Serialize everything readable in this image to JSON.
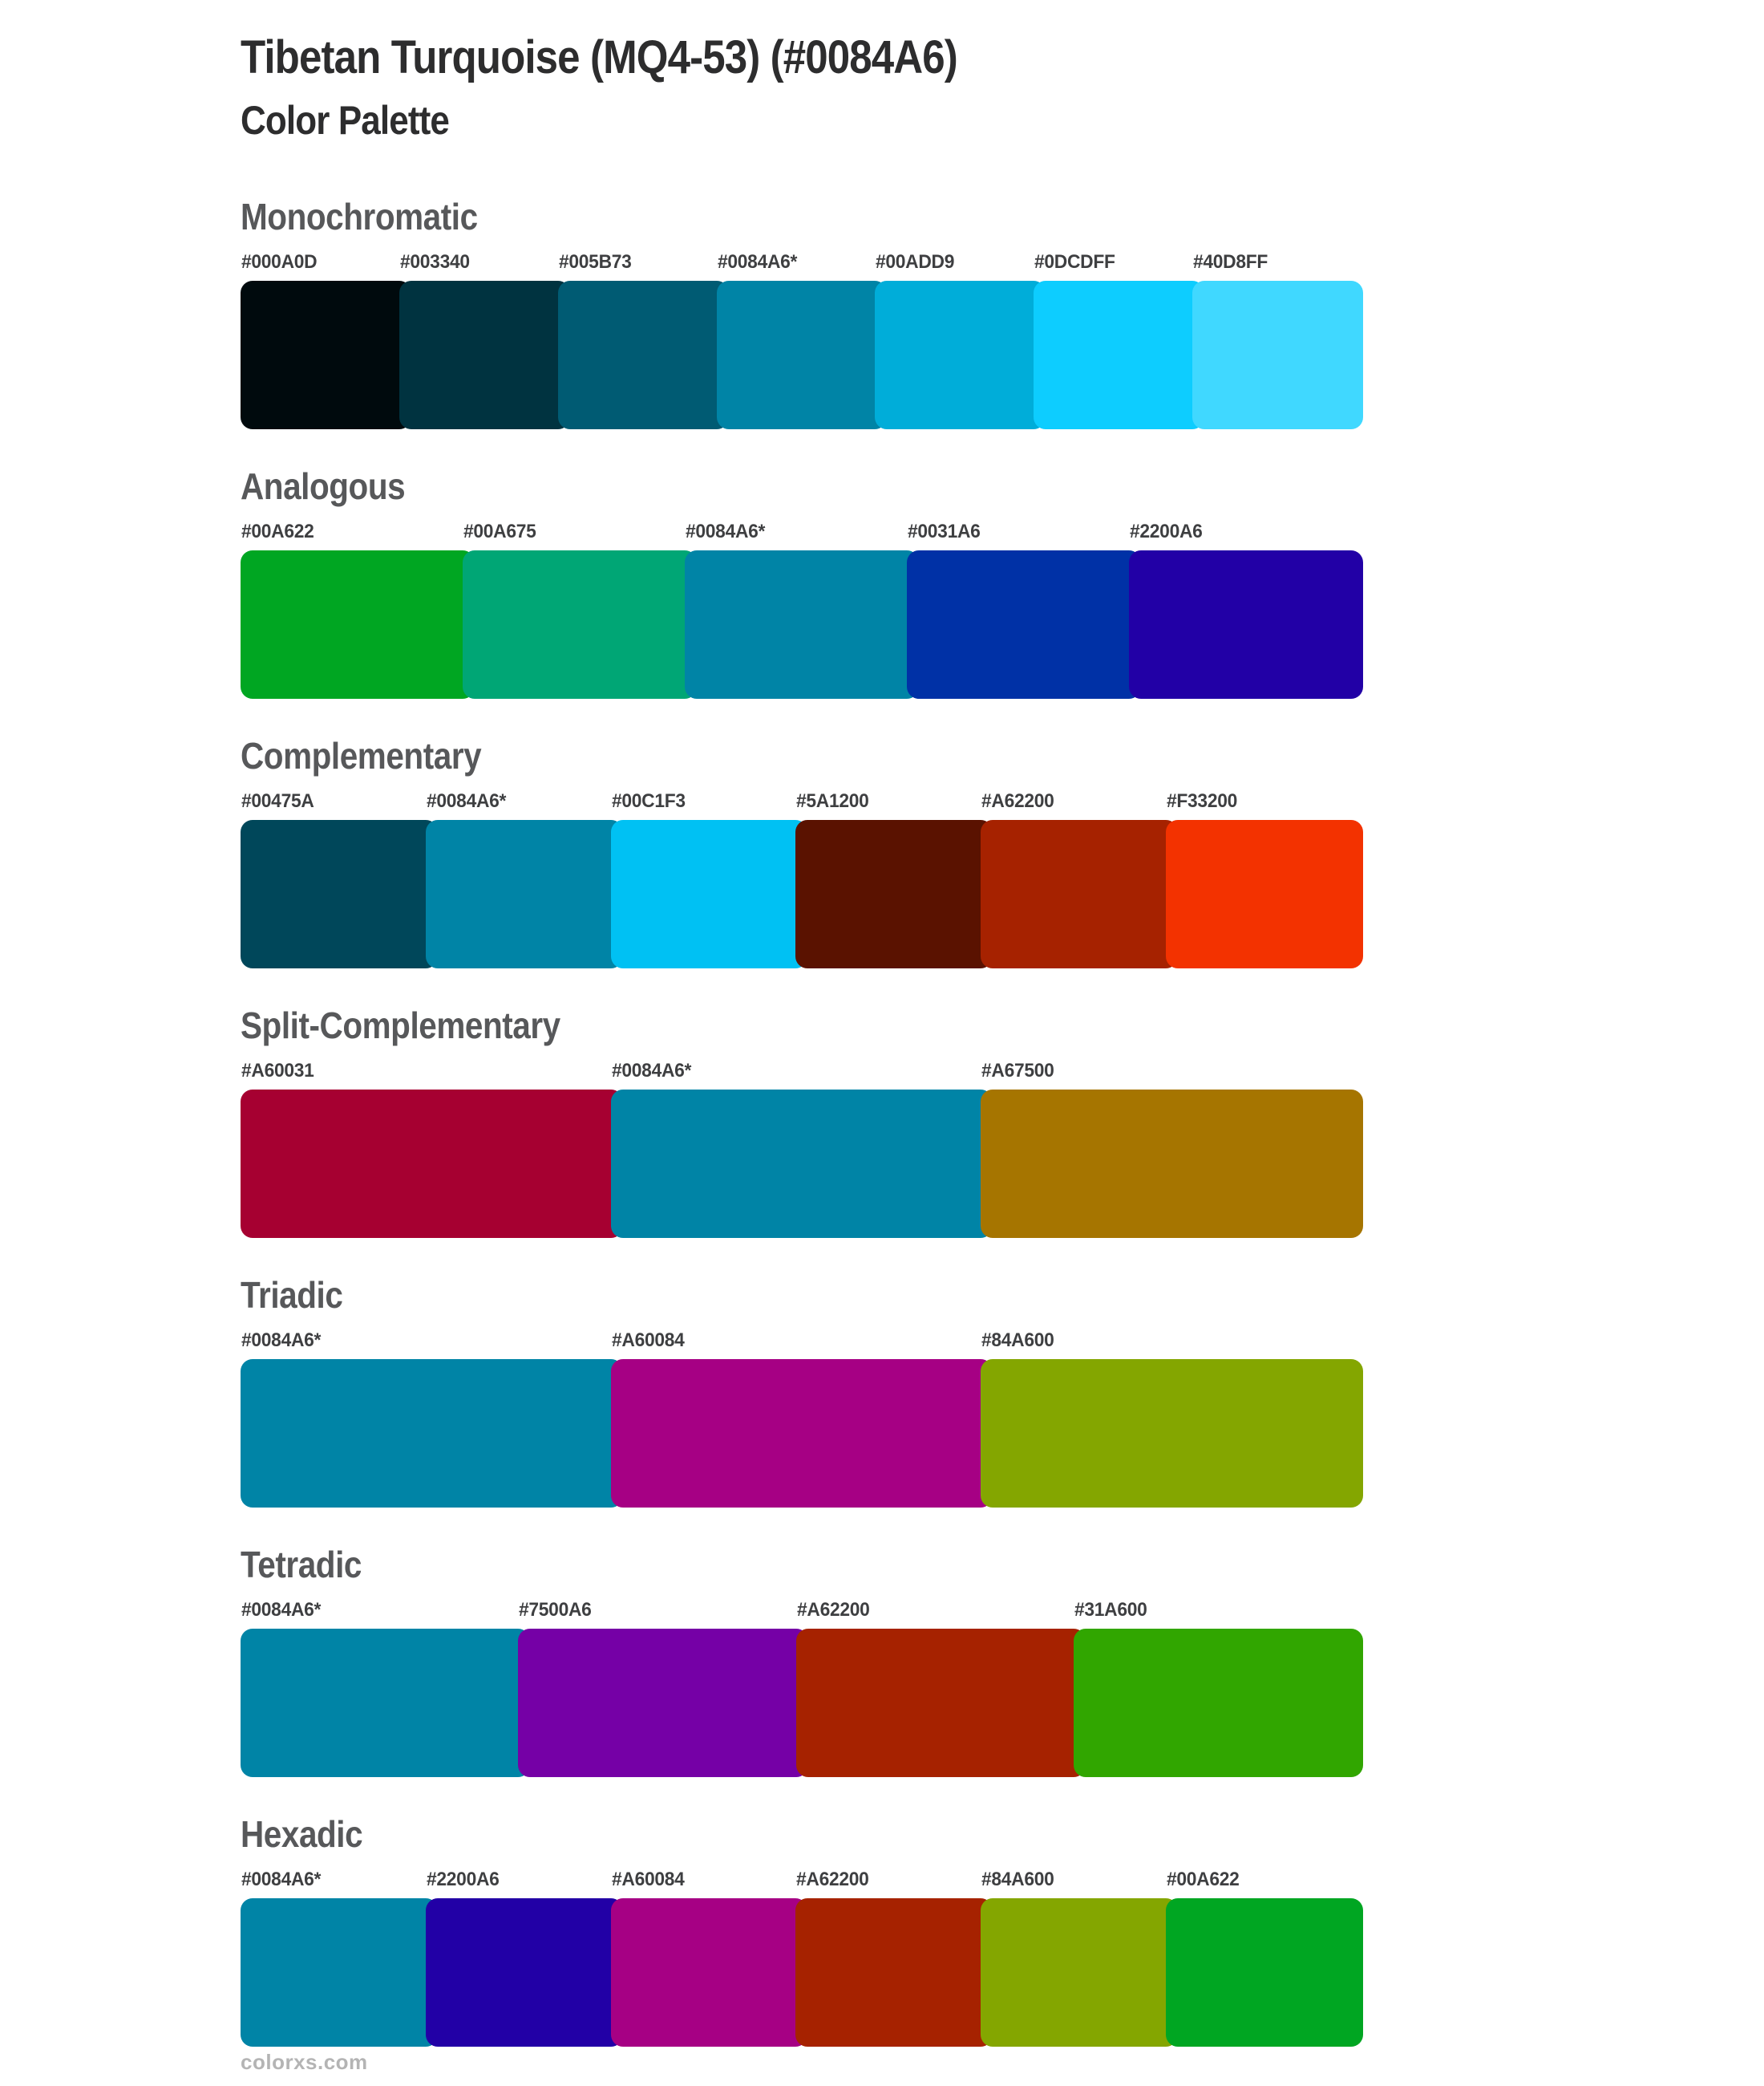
{
  "page": {
    "title": "Tibetan Turquoise (MQ4-53) (#0084A6)",
    "subtitle": "Color Palette",
    "footer": "colorxs.com"
  },
  "palette": {
    "base_color_hex": "#0084A6",
    "base_marker": "*",
    "sections": [
      {
        "name": "Monochromatic",
        "swatches": [
          {
            "label": "#000A0D",
            "color": "#000A0D",
            "is_base": false
          },
          {
            "label": "#003340",
            "color": "#003340",
            "is_base": false
          },
          {
            "label": "#005B73",
            "color": "#005B73",
            "is_base": false
          },
          {
            "label": "#0084A6*",
            "color": "#0084A6",
            "is_base": true
          },
          {
            "label": "#00ADD9",
            "color": "#00ADD9",
            "is_base": false
          },
          {
            "label": "#0DCDFF",
            "color": "#0DCDFF",
            "is_base": false
          },
          {
            "label": "#40D8FF",
            "color": "#40D8FF",
            "is_base": false
          }
        ]
      },
      {
        "name": "Analogous",
        "swatches": [
          {
            "label": "#00A622",
            "color": "#00A622",
            "is_base": false
          },
          {
            "label": "#00A675",
            "color": "#00A675",
            "is_base": false
          },
          {
            "label": "#0084A6*",
            "color": "#0084A6",
            "is_base": true
          },
          {
            "label": "#0031A6",
            "color": "#0031A6",
            "is_base": false
          },
          {
            "label": "#2200A6",
            "color": "#2200A6",
            "is_base": false
          }
        ]
      },
      {
        "name": "Complementary",
        "swatches": [
          {
            "label": "#00475A",
            "color": "#00475A",
            "is_base": false
          },
          {
            "label": "#0084A6*",
            "color": "#0084A6",
            "is_base": true
          },
          {
            "label": "#00C1F3",
            "color": "#00C1F3",
            "is_base": false
          },
          {
            "label": "#5A1200",
            "color": "#5A1200",
            "is_base": false
          },
          {
            "label": "#A62200",
            "color": "#A62200",
            "is_base": false
          },
          {
            "label": "#F33200",
            "color": "#F33200",
            "is_base": false
          }
        ]
      },
      {
        "name": "Split-Complementary",
        "swatches": [
          {
            "label": "#A60031",
            "color": "#A60031",
            "is_base": false
          },
          {
            "label": "#0084A6*",
            "color": "#0084A6",
            "is_base": true
          },
          {
            "label": "#A67500",
            "color": "#A67500",
            "is_base": false
          }
        ]
      },
      {
        "name": "Triadic",
        "swatches": [
          {
            "label": "#0084A6*",
            "color": "#0084A6",
            "is_base": true
          },
          {
            "label": "#A60084",
            "color": "#A60084",
            "is_base": false
          },
          {
            "label": "#84A600",
            "color": "#84A600",
            "is_base": false
          }
        ]
      },
      {
        "name": "Tetradic",
        "swatches": [
          {
            "label": "#0084A6*",
            "color": "#0084A6",
            "is_base": true
          },
          {
            "label": "#7500A6",
            "color": "#7500A6",
            "is_base": false
          },
          {
            "label": "#A62200",
            "color": "#A62200",
            "is_base": false
          },
          {
            "label": "#31A600",
            "color": "#31A600",
            "is_base": false
          }
        ]
      },
      {
        "name": "Hexadic",
        "swatches": [
          {
            "label": "#0084A6*",
            "color": "#0084A6",
            "is_base": true
          },
          {
            "label": "#2200A6",
            "color": "#2200A6",
            "is_base": false
          },
          {
            "label": "#A60084",
            "color": "#A60084",
            "is_base": false
          },
          {
            "label": "#A62200",
            "color": "#A62200",
            "is_base": false
          },
          {
            "label": "#84A600",
            "color": "#84A600",
            "is_base": false
          },
          {
            "label": "#00A622",
            "color": "#00A622",
            "is_base": false
          }
        ]
      }
    ]
  }
}
